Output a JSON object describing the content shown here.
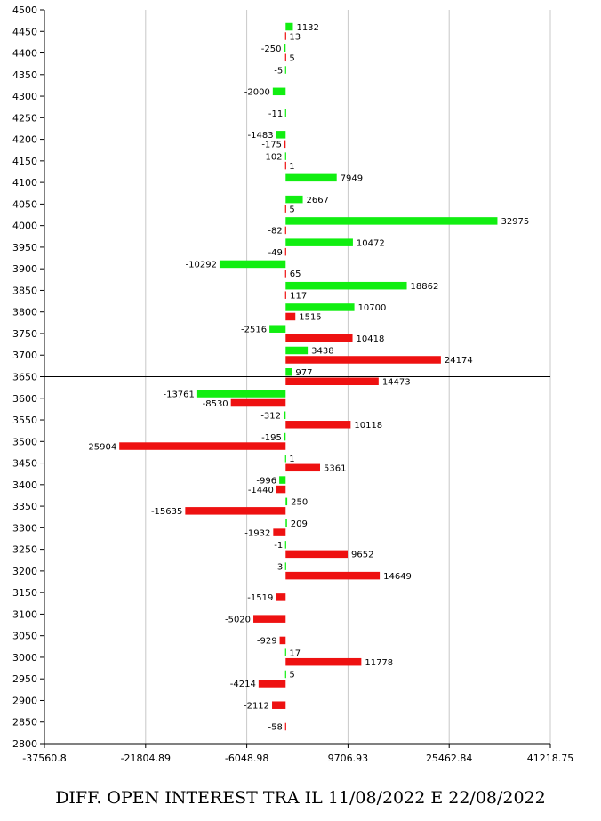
{
  "chart_data": {
    "type": "bar",
    "orientation": "horizontal",
    "title": "DIFF. OPEN INTEREST TRA IL 11/08/2022 E 22/08/2022",
    "colors": {
      "call": "#11ee11",
      "put": "#ee1111",
      "gridline": "#c8c8c8",
      "spot_line": "#000000"
    },
    "xlim": [
      -37560.8,
      41218.75
    ],
    "x_tick_labels": [
      "-37560.8",
      "-21804.89",
      "-6048.98",
      "9706.93",
      "25462.84",
      "41218.75"
    ],
    "ylim": [
      2800,
      4500
    ],
    "spot_level": 3650,
    "categories": [
      4450,
      4400,
      4350,
      4300,
      4250,
      4200,
      4150,
      4100,
      4050,
      4000,
      3950,
      3900,
      3850,
      3800,
      3750,
      3700,
      3650,
      3600,
      3550,
      3500,
      3450,
      3400,
      3350,
      3300,
      3250,
      3200,
      3150,
      3100,
      3050,
      3000,
      2950,
      2900,
      2850
    ],
    "series": [
      {
        "key": "call",
        "values": [
          1132,
          -250,
          -5,
          -2000,
          -11,
          -1483,
          -102,
          7949,
          2667,
          32975,
          10472,
          -10292,
          18862,
          10700,
          -2516,
          3438,
          977,
          -13761,
          -312,
          -195,
          1,
          -996,
          250,
          209,
          -1,
          -3,
          null,
          null,
          null,
          17,
          5,
          null,
          null
        ]
      },
      {
        "key": "put",
        "values": [
          13,
          5,
          null,
          null,
          null,
          -175,
          1,
          null,
          5,
          -82,
          -49,
          65,
          117,
          1515,
          10418,
          24174,
          14473,
          -8530,
          10118,
          -25904,
          5361,
          -1440,
          -15635,
          -1932,
          9652,
          14649,
          -1519,
          -5020,
          -929,
          11778,
          -4214,
          -2112,
          -58
        ]
      }
    ]
  }
}
